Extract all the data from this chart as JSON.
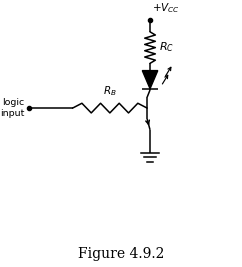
{
  "title": "Figure 4.9.2",
  "title_fontsize": 10,
  "bg_color": "#ffffff",
  "line_color": "#000000",
  "vcc_label": "+$V_{CC}$",
  "rc_label": "$R_C$",
  "rb_label": "$R_B$",
  "logic_label": "logic\ninput",
  "fig_width": 2.42,
  "fig_height": 2.67,
  "dpi": 100
}
